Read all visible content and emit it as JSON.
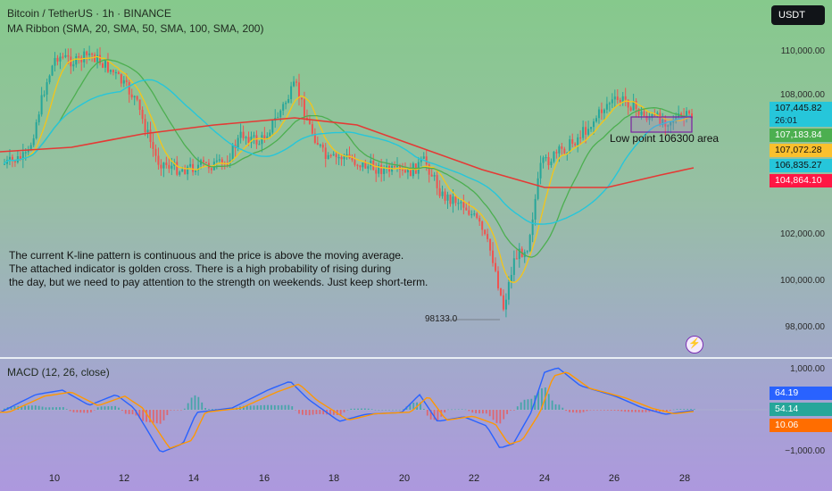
{
  "header": {
    "symbol_title": "Bitcoin / TetherUS · 1h · BINANCE",
    "indicator_title": "MA Ribbon (SMA, 20, SMA, 50, SMA, 100, SMA, 200)",
    "currency_button": "USDT"
  },
  "annotations": {
    "analysis_lines": [
      "The current K-line pattern is continuous and the price is above the moving average.",
      "The attached indicator is golden cross. There is a high probability of rising during",
      "the day, but we need to pay attention to the strength on weekends. Just keep short-term."
    ],
    "low_point_label": "Low point 106300 area",
    "min_price_label": "98133.0"
  },
  "price_axis": {
    "ticks": [
      "110,000.00",
      "108,000.00",
      "102,000.00",
      "100,000.00",
      "98,000.00"
    ],
    "badges": {
      "last_price": "107,445.82",
      "countdown": "26:01",
      "sma20": "107,183.84",
      "sma50": "107,072.28",
      "sma100": "106,835.27",
      "sma200": "104,864.10"
    }
  },
  "macd": {
    "title": "MACD (12, 26, close)",
    "ticks": [
      "1,000.00",
      "−1,000.00"
    ],
    "badges": {
      "macd": "64.19",
      "signal": "54.14",
      "histogram": "10.06"
    }
  },
  "x_axis": {
    "dates": [
      "10",
      "12",
      "14",
      "16",
      "18",
      "20",
      "22",
      "24",
      "26",
      "28"
    ]
  },
  "colors": {
    "up": "#26a69a",
    "down": "#ef5350",
    "sma20": "#f5c518",
    "sma50": "#4caf50",
    "sma100": "#26c6da",
    "sma200": "#e53935",
    "macd_line": "#2962ff",
    "signal_line": "#ff9800",
    "last_price_badge": "#26c6da",
    "sma20_badge": "#4caf50",
    "sma50_badge": "#fbc02d",
    "sma100_badge": "#26c6da",
    "sma200_badge": "#ff1744",
    "macd_badge": "#2962ff",
    "hist_badge": "#26a69a",
    "signal_badge": "#ff6d00"
  },
  "icons": {
    "bolt": "lightning-icon"
  }
}
